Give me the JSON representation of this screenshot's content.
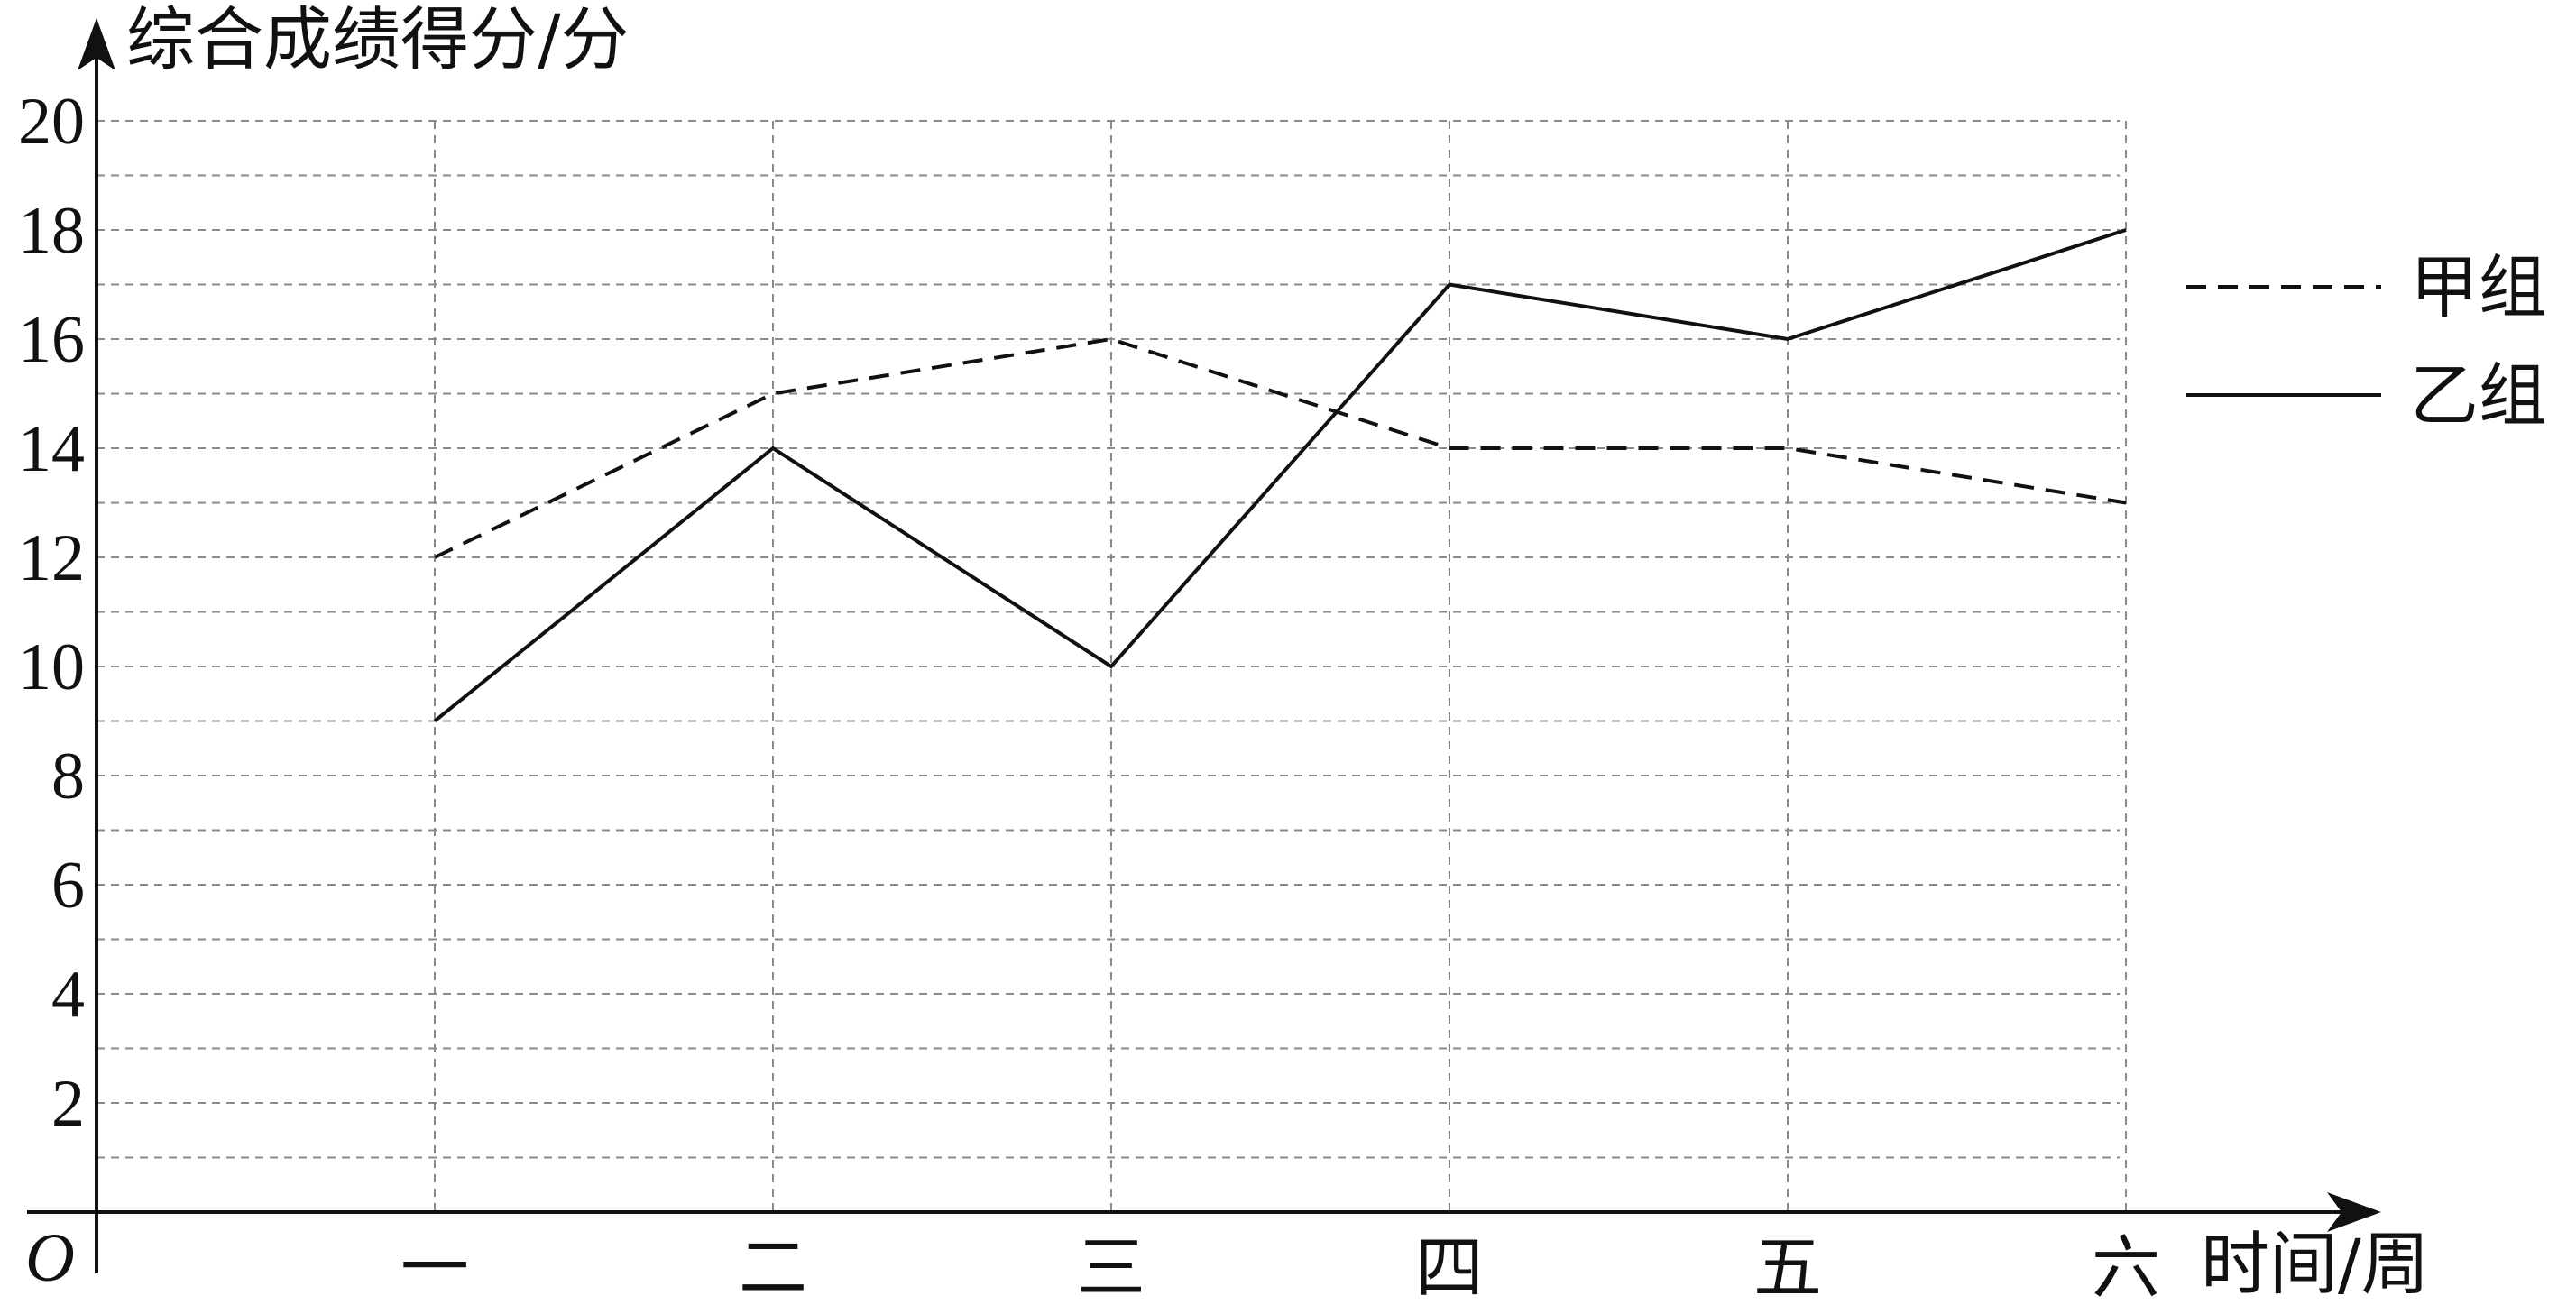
{
  "chart_data": {
    "type": "line",
    "ylabel": "综合成绩得分/分",
    "xlabel": "时间/周",
    "origin_label": "O",
    "categories": [
      "一",
      "二",
      "三",
      "四",
      "五",
      "六"
    ],
    "ylim": [
      0,
      20
    ],
    "y_ticks": [
      2,
      4,
      6,
      8,
      10,
      12,
      14,
      16,
      18,
      20
    ],
    "grid": true,
    "grid_minor_step": 1,
    "legend_position": "right",
    "series": [
      {
        "name": "甲组",
        "style": "dashed",
        "values": [
          12,
          15,
          16,
          14,
          14,
          13
        ]
      },
      {
        "name": "乙组",
        "style": "solid",
        "values": [
          9,
          14,
          10,
          17,
          16,
          18
        ]
      }
    ]
  },
  "colors": {
    "line": "#111111",
    "grid": "#8a8a8a"
  }
}
